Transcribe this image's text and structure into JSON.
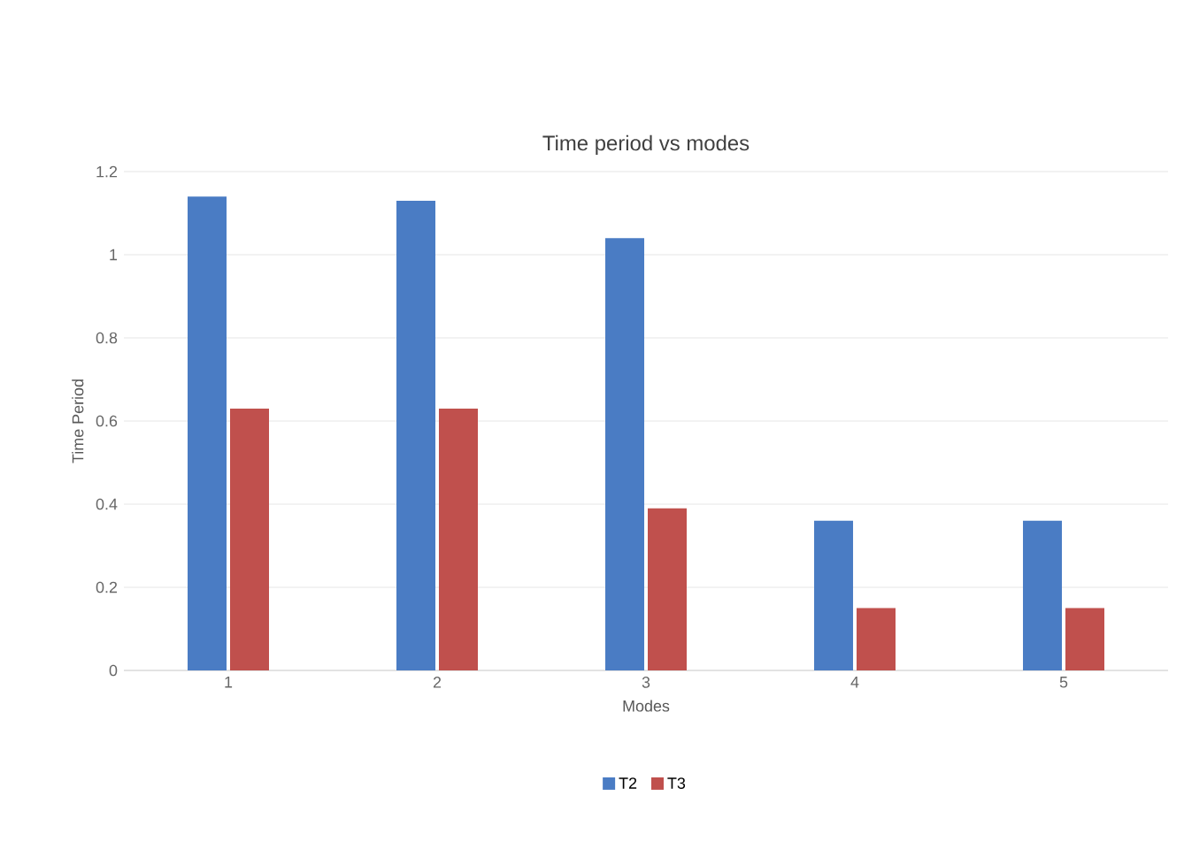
{
  "chart_data": {
    "type": "bar",
    "title": "Time period vs modes",
    "xlabel": "Modes",
    "ylabel": "Time Period",
    "categories": [
      "1",
      "2",
      "3",
      "4",
      "5"
    ],
    "series": [
      {
        "name": "T2",
        "color": "#4a7cc4",
        "values": [
          1.14,
          1.13,
          1.04,
          0.36,
          0.36
        ]
      },
      {
        "name": "T3",
        "color": "#c0504d",
        "values": [
          0.63,
          0.63,
          0.39,
          0.15,
          0.15
        ]
      }
    ],
    "ylim": [
      0,
      1.2
    ],
    "yticks": [
      0,
      0.2,
      0.4,
      0.6,
      0.8,
      1,
      1.2
    ],
    "grid": "y",
    "legend": "bottom"
  }
}
